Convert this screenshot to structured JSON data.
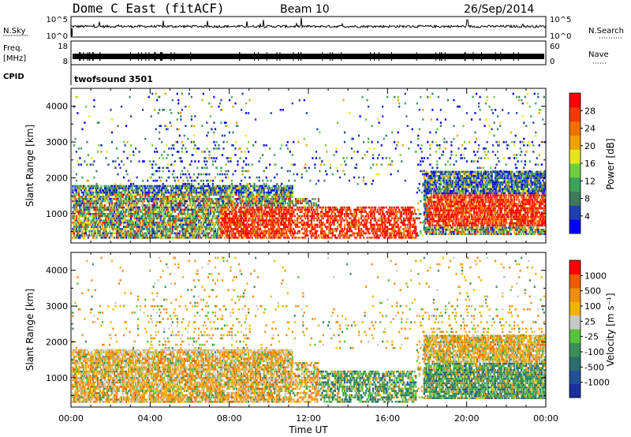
{
  "header": {
    "title": "Dome C East (fitACF)",
    "beam": "Beam 10",
    "date": "26/Sep/2014"
  },
  "top_panels": {
    "nsky_label": "N.Sky",
    "nsky_ticks": [
      "10^5",
      "10^0"
    ],
    "nsearch_label": "N.Search",
    "nsearch_ticks": [
      "10^5",
      "10^0"
    ],
    "freq_label_1": "Freq.",
    "freq_label_2": "[MHz]",
    "freq_ticks": [
      "18",
      "8"
    ],
    "nave_label": "Nave",
    "nave_ticks": [
      "60",
      "0"
    ],
    "cpid_label": "CPID",
    "cpid_value": "twofsound 3501"
  },
  "colors": {
    "power": [
      "#0000ff",
      "#1f3fb0",
      "#3c7a58",
      "#3aa35a",
      "#6ecf3c",
      "#e6e61e",
      "#f0a000",
      "#f07000",
      "#f03a00",
      "#ff0000"
    ],
    "velocity": [
      "#1a2fa0",
      "#234e9a",
      "#2c6e6e",
      "#3a8e5a",
      "#56c43a",
      "#c8c8c8",
      "#f0b400",
      "#f08c14",
      "#f05a00",
      "#ff0000"
    ]
  },
  "chart_data": [
    {
      "type": "heatmap",
      "panel": "power",
      "ylabel": "Slant Range [km]",
      "yticks": [
        "1000",
        "2000",
        "3000",
        "4000"
      ],
      "ylim": [
        180,
        4500
      ],
      "xlim": [
        0,
        24
      ],
      "xticks": [
        "00:00",
        "04:00",
        "08:00",
        "12:00",
        "16:00",
        "20:00",
        "00:00"
      ],
      "colorbar": {
        "label": "Power [dB]",
        "ticks": [
          "28",
          "24",
          "20",
          "16",
          "12",
          "8",
          "4"
        ],
        "range": [
          0,
          32
        ]
      }
    },
    {
      "type": "heatmap",
      "panel": "velocity",
      "ylabel": "Slant Range [km]",
      "yticks": [
        "1000",
        "2000",
        "3000",
        "4000"
      ],
      "ylim": [
        180,
        4500
      ],
      "xlim": [
        0,
        24
      ],
      "xticks": [
        "00:00",
        "04:00",
        "08:00",
        "12:00",
        "16:00",
        "20:00",
        "00:00"
      ],
      "xlabel": "Time UT",
      "colorbar": {
        "label": "Velocity [m s⁻¹]",
        "ticks": [
          "1000",
          "500",
          "100",
          "25",
          "-25",
          "-100",
          "-500",
          "-1000"
        ]
      }
    }
  ]
}
